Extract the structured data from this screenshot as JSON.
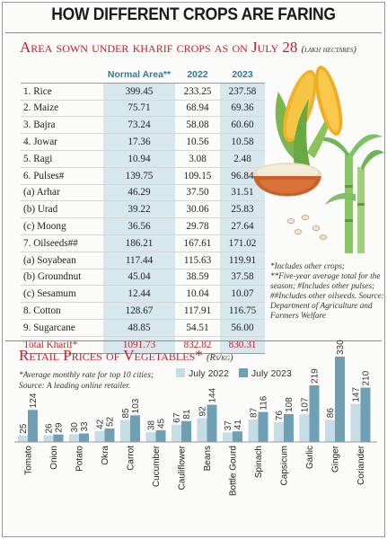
{
  "header": {
    "title": "HOW DIFFERENT CROPS ARE FARING"
  },
  "colors": {
    "accent": "#c0222a",
    "header_blue": "#2f7c97",
    "shade": "#d7e7ee",
    "bar_2022": "#c7dde6",
    "bar_2023": "#6e9fb2"
  },
  "kharif": {
    "title": "Area sown under kharif crops as on July 28",
    "unit": "(lakh hectares)",
    "columns": [
      "Normal Area**",
      "2022",
      "2023"
    ],
    "rows": [
      {
        "crop": "1. Rice",
        "normal": "399.45",
        "y2022": "233.25",
        "y2023": "237.58"
      },
      {
        "crop": "2. Maize",
        "normal": "75.71",
        "y2022": "68.94",
        "y2023": "69.36"
      },
      {
        "crop": "3. Bajra",
        "normal": "73.24",
        "y2022": "58.08",
        "y2023": "60.60"
      },
      {
        "crop": "4. Jowar",
        "normal": "17.36",
        "y2022": "10.56",
        "y2023": "10.58"
      },
      {
        "crop": "5. Ragi",
        "normal": "10.94",
        "y2022": "3.08",
        "y2023": "2.48"
      },
      {
        "crop": "6. Pulses#",
        "normal": "139.75",
        "y2022": "109.15",
        "y2023": "96.84"
      },
      {
        "crop": "(a) Arhar",
        "normal": "46.29",
        "y2022": "37.50",
        "y2023": "31.51"
      },
      {
        "crop": "(b) Urad",
        "normal": "39.22",
        "y2022": "30.06",
        "y2023": "25.83"
      },
      {
        "crop": "(c) Moong",
        "normal": "36.56",
        "y2022": "29.78",
        "y2023": "27.64"
      },
      {
        "crop": "7. Oilseeds##",
        "normal": "186.21",
        "y2022": "167.61",
        "y2023": "171.02"
      },
      {
        "crop": "(a) Soyabean",
        "normal": "117.44",
        "y2022": "115.63",
        "y2023": "119.91"
      },
      {
        "crop": "(b) Groundnut",
        "normal": "45.04",
        "y2022": "38.59",
        "y2023": "37.58"
      },
      {
        "crop": "(c) Sesamum",
        "normal": "12.44",
        "y2022": "10.04",
        "y2023": "10.07"
      },
      {
        "crop": "8. Cotton",
        "normal": "128.67",
        "y2022": "117.91",
        "y2023": "116.75"
      },
      {
        "crop": "9. Sugarcane",
        "normal": "48.85",
        "y2022": "54.51",
        "y2023": "56.00"
      }
    ],
    "total": {
      "crop": "Total Kharif*",
      "normal": "1091.73",
      "y2022": "832.82",
      "y2023": "830.31"
    },
    "notes": [
      "*Includes other crops;",
      "**Five-year average total for the season; #Includes other pulses; ##Includes other oilseeds. Source:",
      "Department of Agriculture and Farmers Welfare"
    ]
  },
  "veg": {
    "title": "Retail Prices of Vegetables*",
    "unit": "(Rs/kg)",
    "notes": [
      "*Average monthly rate for top 10 cities;",
      "Source: A leading online retailer."
    ],
    "legend": [
      "July 2022",
      "July 2023"
    ]
  },
  "chart_data": {
    "type": "bar",
    "title": "Retail Prices of Vegetables*",
    "ylabel": "(Rs/kg)",
    "categories": [
      "Tomato",
      "Onion",
      "Potato",
      "Okra",
      "Carrot",
      "Cucumber",
      "Cauliflower",
      "Beans",
      "Bottle Gourd",
      "Spinach",
      "Capsicum",
      "Garlic",
      "Ginger",
      "Coriander"
    ],
    "series": [
      {
        "name": "July 2022",
        "values": [
          25,
          26,
          30,
          42,
          85,
          38,
          67,
          92,
          37,
          87,
          76,
          107,
          86,
          147
        ]
      },
      {
        "name": "July 2023",
        "values": [
          124,
          29,
          33,
          52,
          103,
          45,
          81,
          144,
          41,
          116,
          108,
          219,
          330,
          210
        ]
      }
    ],
    "ylim": [
      0,
      330
    ],
    "grid": false,
    "legend_position": "top-right"
  }
}
